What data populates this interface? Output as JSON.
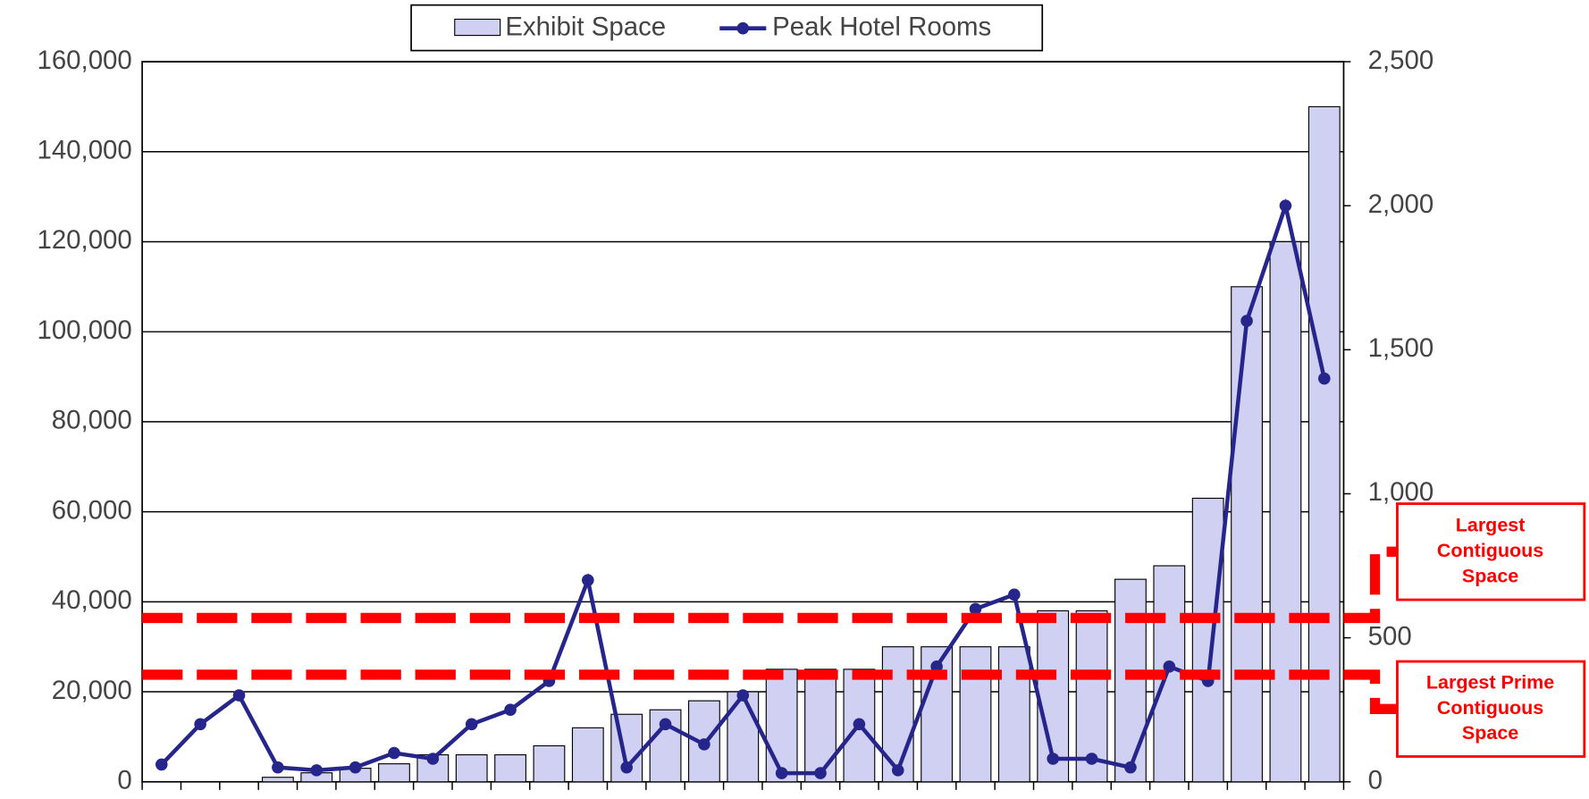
{
  "chart_data": {
    "type": "bar-line",
    "categories": [
      null,
      null,
      null,
      null,
      null,
      null,
      null,
      null,
      null,
      null,
      null,
      null,
      null,
      null,
      null,
      null,
      null,
      null,
      null,
      null,
      null,
      null,
      null,
      null,
      null,
      null,
      null,
      null,
      null,
      null,
      null
    ],
    "series": [
      {
        "name": "Exhibit Space",
        "type": "bar",
        "color": "#d0d0f2",
        "values": [
          0,
          0,
          0,
          1000,
          2000,
          3000,
          4000,
          6000,
          6000,
          6000,
          8000,
          12000,
          15000,
          16000,
          18000,
          20000,
          25000,
          25000,
          25000,
          30000,
          30000,
          30000,
          30000,
          38000,
          38000,
          45000,
          48000,
          63000,
          110000,
          120000,
          150000
        ]
      },
      {
        "name": "Peak Hotel Rooms",
        "type": "line",
        "axis": "y2",
        "color": "#25258c",
        "values": [
          60,
          200,
          300,
          50,
          40,
          50,
          100,
          80,
          200,
          250,
          350,
          700,
          50,
          200,
          130,
          300,
          30,
          30,
          200,
          40,
          400,
          600,
          650,
          80,
          80,
          50,
          400,
          350,
          1600,
          2000,
          1400
        ]
      }
    ],
    "ylim": [
      0,
      160000
    ],
    "yticks": [
      0,
      {
        "value": 20000,
        "label": "20,000"
      },
      {
        "value": 40000,
        "label": "40,000"
      },
      {
        "value": 60000,
        "label": "60,000"
      },
      {
        "value": 80000,
        "label": "80,000"
      },
      {
        "value": 100000,
        "label": "100,000"
      },
      {
        "value": 120000,
        "label": "120,000"
      },
      {
        "value": 140000,
        "label": "140,000"
      },
      {
        "value": 160000,
        "label": "160,000"
      }
    ],
    "y2lim": [
      0,
      2500
    ],
    "y2ticks": [
      0,
      500,
      {
        "value": 1000,
        "label": "1,000"
      },
      {
        "value": 1500,
        "label": "1,500"
      },
      {
        "value": 2000,
        "label": "2,000"
      },
      {
        "value": 2500,
        "label": "2,500"
      }
    ],
    "grid": true,
    "legend": "top",
    "reference_lines": [
      {
        "value": 36400,
        "color": "#ff0000",
        "label": [
          "Largest",
          "Contiguous",
          "Space"
        ]
      },
      {
        "value": 23800,
        "color": "#ff0000",
        "label": [
          "Largest Prime",
          "Contiguous",
          "Space"
        ]
      }
    ]
  }
}
